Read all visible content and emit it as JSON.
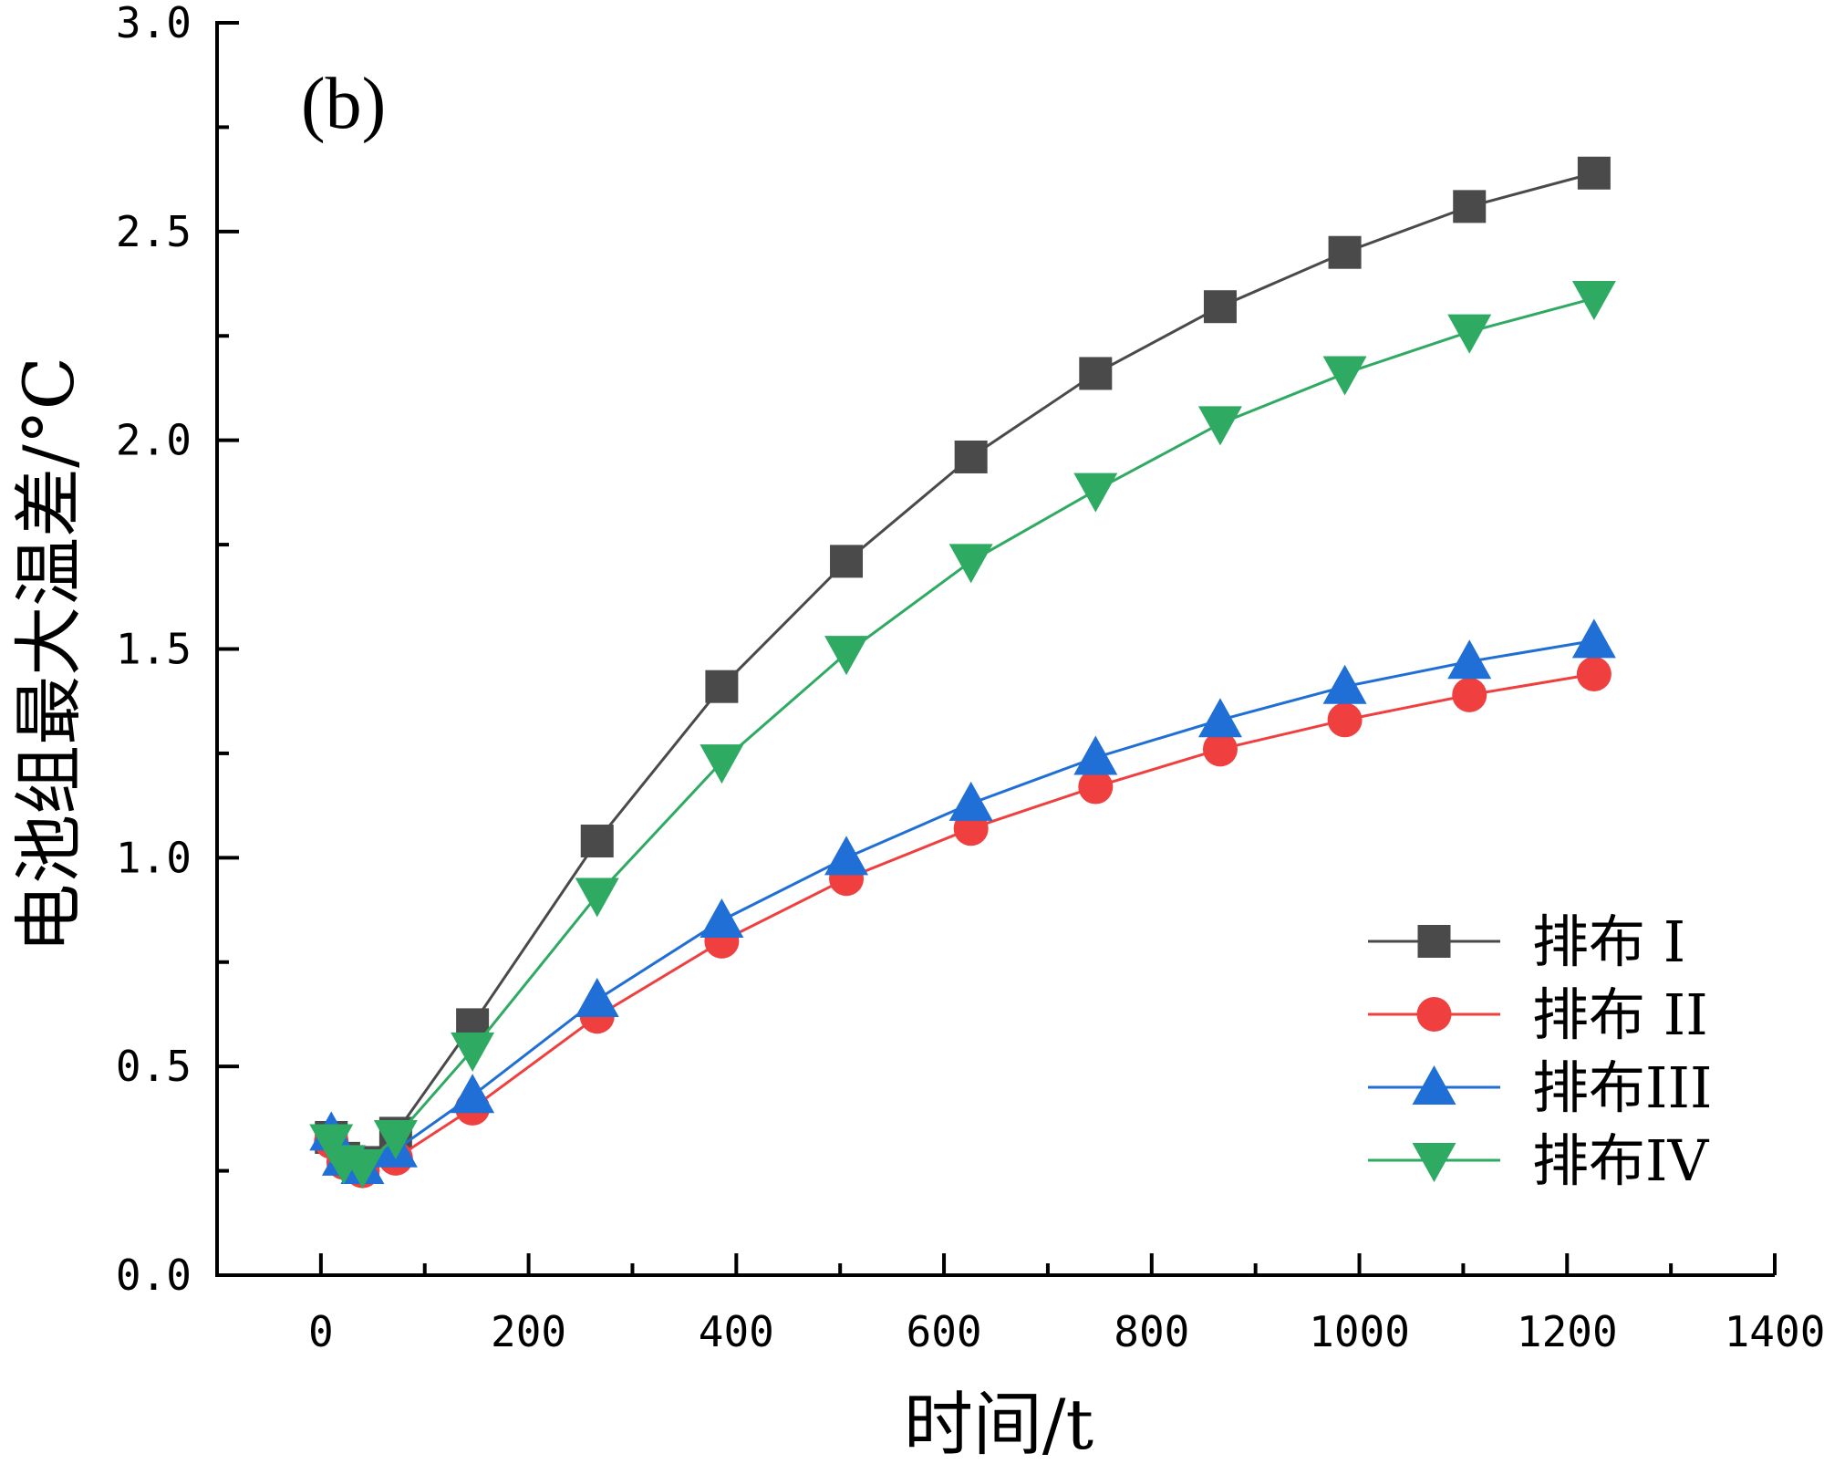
{
  "chart_data": {
    "type": "line",
    "panel_label": "(b)",
    "xlabel": "时间/t",
    "ylabel": "电池组最大温差/°C",
    "xlim": [
      -100,
      1400
    ],
    "ylim": [
      0.0,
      3.0
    ],
    "x_ticks": [
      0,
      200,
      400,
      600,
      800,
      1000,
      1200,
      1400
    ],
    "x_tick_labels": [
      "0",
      "200",
      "400",
      "600",
      "800",
      "1000",
      "1200",
      "1400"
    ],
    "y_ticks": [
      0.0,
      0.5,
      1.0,
      1.5,
      2.0,
      2.5,
      3.0
    ],
    "y_tick_labels": [
      "0.0",
      "0.5",
      "1.0",
      "1.5",
      "2.0",
      "2.5",
      "3.0"
    ],
    "x_minor_step": 100,
    "y_minor_step": 0.25,
    "grid": false,
    "legend_position": "bottom-right",
    "series": [
      {
        "name": "排布 I",
        "color": "#4a4a4a",
        "marker": "square",
        "x": [
          10,
          22,
          40,
          72,
          146,
          266,
          386,
          506,
          626,
          746,
          866,
          986,
          1106,
          1226
        ],
        "y": [
          0.33,
          0.28,
          0.27,
          0.34,
          0.6,
          1.04,
          1.41,
          1.71,
          1.96,
          2.16,
          2.32,
          2.45,
          2.56,
          2.64
        ]
      },
      {
        "name": "排布 II",
        "color": "#ef3f3f",
        "marker": "circle",
        "x": [
          10,
          22,
          40,
          72,
          146,
          266,
          386,
          506,
          626,
          746,
          866,
          986,
          1106,
          1226
        ],
        "y": [
          0.32,
          0.27,
          0.25,
          0.28,
          0.4,
          0.62,
          0.8,
          0.95,
          1.07,
          1.17,
          1.26,
          1.33,
          1.39,
          1.44
        ]
      },
      {
        "name": "排布III",
        "color": "#1f6fd6",
        "marker": "triangle-up",
        "x": [
          10,
          22,
          40,
          72,
          146,
          266,
          386,
          506,
          626,
          746,
          866,
          986,
          1106,
          1226
        ],
        "y": [
          0.34,
          0.28,
          0.26,
          0.3,
          0.43,
          0.66,
          0.85,
          1.0,
          1.13,
          1.24,
          1.33,
          1.41,
          1.47,
          1.52
        ]
      },
      {
        "name": "排布IV",
        "color": "#2eaa62",
        "marker": "triangle-down",
        "x": [
          10,
          22,
          40,
          72,
          146,
          266,
          386,
          506,
          626,
          746,
          866,
          986,
          1106,
          1226
        ],
        "y": [
          0.32,
          0.27,
          0.26,
          0.33,
          0.54,
          0.91,
          1.23,
          1.49,
          1.71,
          1.88,
          2.04,
          2.16,
          2.26,
          2.34
        ]
      }
    ]
  }
}
